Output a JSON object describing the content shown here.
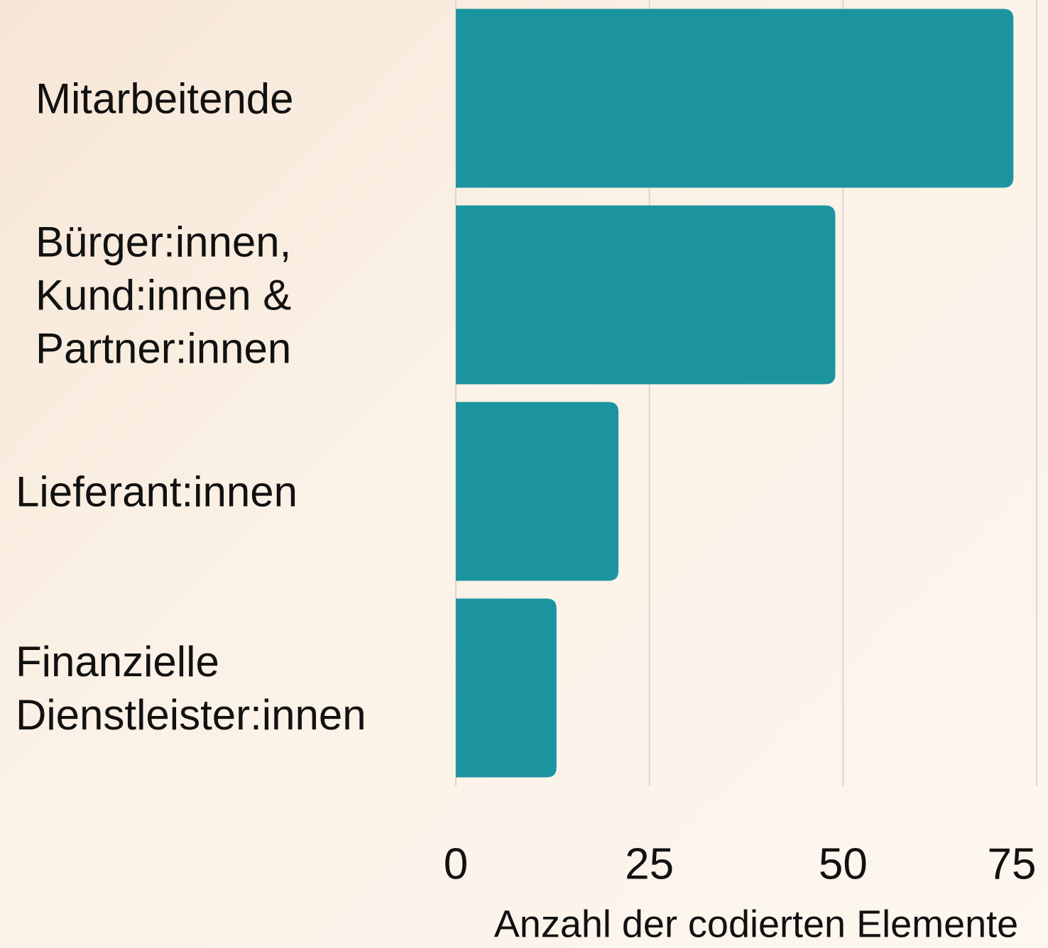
{
  "chart_data": {
    "type": "barh",
    "categories": [
      "Mitarbeitende",
      "Bürger:innen,\nKund:innen &\nPartner:innen",
      "Lieferant:innen",
      "Finanzielle\nDienstleister:innen"
    ],
    "values": [
      72,
      49,
      21,
      13
    ],
    "color": "#1c94a0",
    "xlim": [
      0,
      75
    ],
    "xticks": [
      0,
      25,
      50,
      75
    ],
    "grid": true,
    "xlabel": "Anzahl der codierten Elemente"
  }
}
